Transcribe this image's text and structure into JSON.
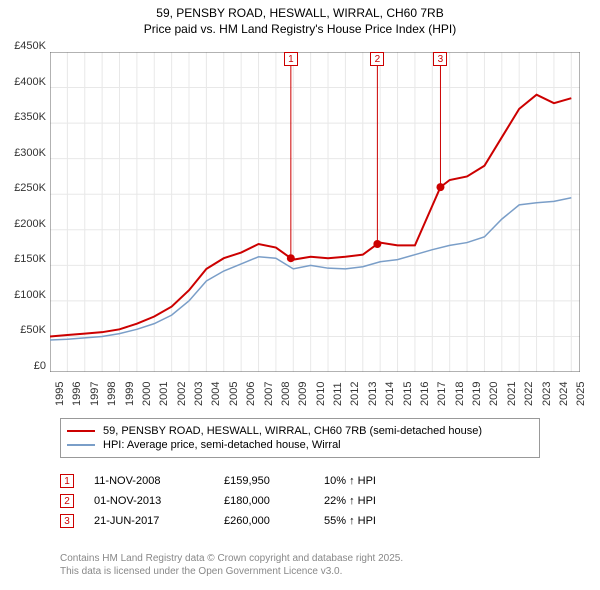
{
  "title": "59, PENSBY ROAD, HESWALL, WIRRAL, CH60 7RB",
  "subtitle": "Price paid vs. HM Land Registry's House Price Index (HPI)",
  "chart": {
    "type": "line",
    "background_color": "#ffffff",
    "grid_color": "#e8e8e8",
    "axis_color": "#666666",
    "label_fontsize": 11,
    "xlim": [
      1995,
      2025.5
    ],
    "ylim": [
      0,
      450
    ],
    "ytick_step": 50,
    "yticks": [
      "£0",
      "£50K",
      "£100K",
      "£150K",
      "£200K",
      "£250K",
      "£300K",
      "£350K",
      "£400K",
      "£450K"
    ],
    "xticks": [
      "1995",
      "1996",
      "1997",
      "1998",
      "1999",
      "2000",
      "2001",
      "2002",
      "2003",
      "2004",
      "2005",
      "2006",
      "2007",
      "2008",
      "2009",
      "2010",
      "2011",
      "2012",
      "2013",
      "2014",
      "2015",
      "2016",
      "2017",
      "2018",
      "2019",
      "2020",
      "2021",
      "2022",
      "2023",
      "2024",
      "2025"
    ],
    "series": [
      {
        "name": "property",
        "label": "59, PENSBY ROAD, HESWALL, WIRRAL, CH60 7RB (semi-detached house)",
        "color": "#cc0000",
        "line_width": 2,
        "data": [
          [
            1995,
            50
          ],
          [
            1996,
            52
          ],
          [
            1997,
            54
          ],
          [
            1998,
            56
          ],
          [
            1999,
            60
          ],
          [
            2000,
            68
          ],
          [
            2001,
            78
          ],
          [
            2002,
            92
          ],
          [
            2003,
            115
          ],
          [
            2004,
            145
          ],
          [
            2005,
            160
          ],
          [
            2006,
            168
          ],
          [
            2007,
            180
          ],
          [
            2008,
            175
          ],
          [
            2008.86,
            160
          ],
          [
            2009,
            158
          ],
          [
            2010,
            162
          ],
          [
            2011,
            160
          ],
          [
            2012,
            162
          ],
          [
            2013,
            165
          ],
          [
            2013.84,
            180
          ],
          [
            2014,
            182
          ],
          [
            2015,
            178
          ],
          [
            2016,
            178
          ],
          [
            2017.47,
            260
          ],
          [
            2018,
            270
          ],
          [
            2019,
            275
          ],
          [
            2020,
            290
          ],
          [
            2021,
            330
          ],
          [
            2022,
            370
          ],
          [
            2023,
            390
          ],
          [
            2024,
            378
          ],
          [
            2025,
            385
          ]
        ],
        "markers": [
          {
            "x": 2008.86,
            "y": 160,
            "n": "1"
          },
          {
            "x": 2013.84,
            "y": 180,
            "n": "2"
          },
          {
            "x": 2017.47,
            "y": 260,
            "n": "3"
          }
        ]
      },
      {
        "name": "hpi",
        "label": "HPI: Average price, semi-detached house, Wirral",
        "color": "#7a9ec8",
        "line_width": 1.5,
        "data": [
          [
            1995,
            45
          ],
          [
            1996,
            46
          ],
          [
            1997,
            48
          ],
          [
            1998,
            50
          ],
          [
            1999,
            54
          ],
          [
            2000,
            60
          ],
          [
            2001,
            68
          ],
          [
            2002,
            80
          ],
          [
            2003,
            100
          ],
          [
            2004,
            128
          ],
          [
            2005,
            142
          ],
          [
            2006,
            152
          ],
          [
            2007,
            162
          ],
          [
            2008,
            160
          ],
          [
            2009,
            145
          ],
          [
            2010,
            150
          ],
          [
            2011,
            146
          ],
          [
            2012,
            145
          ],
          [
            2013,
            148
          ],
          [
            2014,
            155
          ],
          [
            2015,
            158
          ],
          [
            2016,
            165
          ],
          [
            2017,
            172
          ],
          [
            2018,
            178
          ],
          [
            2019,
            182
          ],
          [
            2020,
            190
          ],
          [
            2021,
            215
          ],
          [
            2022,
            235
          ],
          [
            2023,
            238
          ],
          [
            2024,
            240
          ],
          [
            2025,
            245
          ]
        ]
      }
    ]
  },
  "legend": {
    "border_color": "#999999",
    "items": [
      {
        "color": "#cc0000",
        "label": "59, PENSBY ROAD, HESWALL, WIRRAL, CH60 7RB (semi-detached house)"
      },
      {
        "color": "#7a9ec8",
        "label": "HPI: Average price, semi-detached house, Wirral"
      }
    ]
  },
  "datapoints": {
    "marker_border_color": "#cc0000",
    "marker_text_color": "#cc0000",
    "rows": [
      {
        "n": "1",
        "date": "11-NOV-2008",
        "price": "£159,950",
        "delta": "10% ↑ HPI"
      },
      {
        "n": "2",
        "date": "01-NOV-2013",
        "price": "£180,000",
        "delta": "22% ↑ HPI"
      },
      {
        "n": "3",
        "date": "21-JUN-2017",
        "price": "£260,000",
        "delta": "55% ↑ HPI"
      }
    ]
  },
  "footer": {
    "line1": "Contains HM Land Registry data © Crown copyright and database right 2025.",
    "line2": "This data is licensed under the Open Government Licence v3.0.",
    "color": "#999999"
  }
}
